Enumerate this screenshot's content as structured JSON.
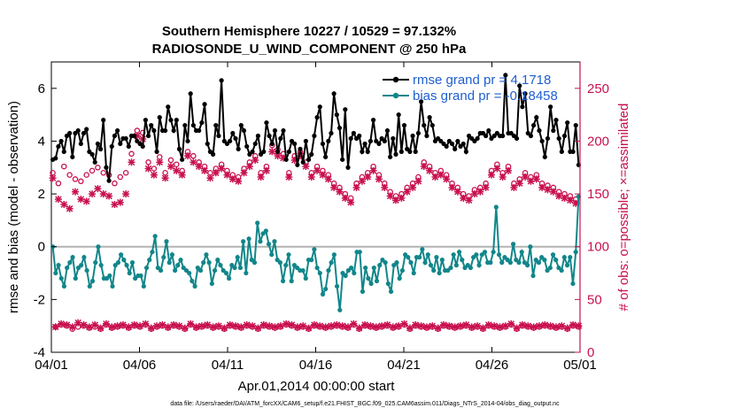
{
  "chart_data": {
    "type": "line",
    "title": "Southern Hemisphere 10227 / 10529 = 97.132%",
    "subtitle": "RADIOSONDE_U_WIND_COMPONENT @ 250 hPa",
    "xlabel": "Apr.01,2014 00:00:00 start",
    "ylabel": "rmse and bias (model - observation)",
    "ylabel_right": "# of obs: o=possible; ×=assimilated",
    "footnote": "data file: /Users/raeder/DAI/ATM_forcXX/CAM6_setup/f.e21.FHIST_BGC.f09_025.CAM6assim.011/Diags_NTrS_2014-04/obs_diag_output.nc",
    "xlim": [
      0,
      30
    ],
    "ylim": [
      -4,
      7
    ],
    "ylim_right": [
      0,
      275
    ],
    "x_ticks": [
      0,
      5,
      10,
      15,
      20,
      25,
      30
    ],
    "x_tick_labels": [
      "04/01",
      "04/06",
      "04/11",
      "04/16",
      "04/21",
      "04/26",
      "05/01"
    ],
    "y_ticks": [
      -4,
      -2,
      0,
      2,
      4,
      6
    ],
    "y_tick_labels": [
      "-4",
      "-2",
      "0",
      "2",
      "4",
      "6"
    ],
    "y_right_ticks": [
      0,
      50,
      100,
      150,
      200,
      250
    ],
    "y_right_tick_labels": [
      "0",
      "50",
      "100",
      "150",
      "200",
      "250"
    ],
    "grid": false,
    "legend_position": "top-right",
    "series": [
      {
        "name": "rmse grand pr = 4.1718",
        "color": "#000000",
        "marker": "circle",
        "axis": "left",
        "values": [
          3.3,
          3.35,
          3.8,
          4.0,
          3.6,
          4.2,
          4.3,
          3.4,
          4.3,
          4.4,
          3.9,
          4.3,
          4.45,
          3.6,
          3.5,
          3.2,
          3.9,
          3.7,
          4.8,
          3.0,
          2.5,
          3.8,
          4.2,
          4.4,
          3.9,
          4.1,
          4.1,
          3.8,
          4.2,
          4.2,
          4.0,
          3.9,
          3.8,
          4.8,
          4.2,
          4.6,
          4.4,
          3.6,
          4.9,
          4.4,
          4.4,
          5.3,
          4.8,
          4.4,
          4.8,
          3.7,
          3.3,
          4.6,
          4.0,
          5.8,
          4.6,
          4.4,
          4.4,
          4.7,
          5.4,
          3.9,
          3.6,
          3.5,
          4.6,
          4.2,
          6.3,
          4.0,
          3.9,
          4.0,
          4.3,
          4.1,
          3.7,
          4.6,
          4.4,
          3.8,
          3.5,
          3.6,
          3.9,
          4.2,
          3.5,
          3.6,
          4.7,
          4.2,
          3.9,
          4.4,
          3.6,
          4.1,
          4.4,
          3.3,
          3.6,
          4.0,
          3.9,
          3.1,
          3.7,
          3.2,
          4.0,
          3.3,
          3.5,
          4.2,
          4.9,
          5.3,
          3.9,
          3.4,
          4.0,
          4.3,
          5.8,
          5.0,
          4.5,
          3.3,
          5.2,
          3.0,
          4.1,
          4.3,
          4.1,
          4.2,
          3.6,
          3.9,
          3.6,
          4.0,
          4.8,
          4.0,
          3.9,
          4.1,
          4.0,
          4.4,
          3.4,
          4.1,
          3.5,
          5.0,
          3.6,
          4.6,
          3.7,
          3.6,
          4.2,
          3.6,
          4.3,
          5.5,
          4.6,
          4.2,
          4.9,
          4.6,
          4.0,
          4.1,
          4.0,
          3.9,
          3.8,
          4.0,
          3.9,
          3.7,
          4.0,
          3.8,
          3.9,
          3.6,
          4.2,
          4.1,
          4.0,
          4.1,
          4.3,
          4.3,
          4.2,
          4.4,
          4.1,
          4.2,
          4.3,
          4.2,
          4.2,
          6.5,
          4.3,
          4.3,
          4.2,
          4.1,
          6.1,
          5.3,
          5.8,
          4.3,
          4.2,
          4.6,
          4.9,
          4.4,
          4.0,
          3.4,
          4.1,
          5.3,
          4.4,
          4.8,
          4.1,
          3.6,
          4.2,
          4.7,
          3.6,
          3.6,
          4.6,
          3.1
        ]
      },
      {
        "name": "bias grand pr = -0.18458",
        "color": "#11868a",
        "marker": "circle",
        "axis": "left",
        "values": [
          0.0,
          -1.0,
          -0.7,
          -1.2,
          -1.5,
          -0.8,
          -0.6,
          -0.4,
          -1.2,
          -0.8,
          -0.7,
          -0.4,
          -0.9,
          -1.5,
          -1.3,
          -0.6,
          0.0,
          -0.7,
          -1.2,
          -1.2,
          -1.1,
          -1.5,
          -0.7,
          -0.6,
          -0.3,
          -0.5,
          -0.7,
          -1.0,
          -0.6,
          -1.2,
          -1.1,
          -1.1,
          -1.5,
          -0.8,
          -0.5,
          -0.2,
          0.4,
          -0.8,
          -0.9,
          -0.4,
          0.2,
          -0.6,
          -0.3,
          -0.9,
          -0.7,
          -0.5,
          -0.8,
          -0.9,
          -1.0,
          -1.3,
          -1.5,
          -0.8,
          -0.9,
          -0.6,
          -0.3,
          -0.6,
          -1.4,
          -0.9,
          -0.5,
          -0.7,
          -0.9,
          -1.0,
          -1.2,
          -0.7,
          -0.8,
          -0.4,
          -0.8,
          0.2,
          -1.0,
          0.3,
          -0.5,
          -0.6,
          0.9,
          0.2,
          0.5,
          0.6,
          0.1,
          -0.3,
          0.2,
          -0.5,
          -0.6,
          -1.3,
          -0.7,
          -0.3,
          -1.3,
          -0.7,
          -0.8,
          -0.9,
          -0.9,
          -1.2,
          -0.5,
          -0.5,
          -0.1,
          -0.8,
          -1.0,
          -1.8,
          -1.6,
          -0.9,
          -0.6,
          -0.3,
          -1.5,
          -2.4,
          -1.0,
          -1.1,
          -0.9,
          -0.8,
          -1.0,
          -0.2,
          -0.2,
          -1.7,
          -0.8,
          -1.2,
          -1.4,
          -0.8,
          -1.3,
          -0.7,
          -0.5,
          -0.6,
          -1.4,
          -1.7,
          -0.7,
          -0.6,
          -1.2,
          -0.9,
          -0.3,
          -0.4,
          -0.6,
          -1.0,
          -0.4,
          -0.4,
          -0.1,
          -0.6,
          -0.3,
          -0.7,
          -0.9,
          -0.4,
          -1.0,
          -0.5,
          -0.9,
          -0.9,
          -0.8,
          -0.3,
          -0.7,
          -0.2,
          -0.5,
          -0.8,
          -0.7,
          -0.8,
          -0.4,
          -0.3,
          -0.7,
          -0.3,
          -0.2,
          -0.6,
          -0.6,
          -0.2,
          1.5,
          -0.3,
          -0.6,
          -0.4,
          -0.5,
          -0.6,
          0.1,
          -0.5,
          -0.6,
          -0.2,
          -0.6,
          -0.7,
          0.0,
          -1.1,
          -0.5,
          -0.6,
          -0.4,
          -0.5,
          -0.9,
          -0.8,
          -0.3,
          -0.5,
          -0.8,
          -0.9,
          -0.4,
          -0.7,
          -0.4,
          -1.4,
          -0.2,
          1.9
        ]
      },
      {
        "name": "possible obs",
        "color": "#c8104f",
        "marker": "o",
        "axis": "right",
        "values": [
          170,
          24,
          160,
          26,
          176,
          25,
          168,
          22,
          164,
          24,
          162,
          25,
          168,
          23,
          172,
          24,
          175,
          22,
          170,
          26,
          168,
          23,
          160,
          24,
          166,
          25,
          170,
          23,
          188,
          25,
          210,
          24,
          208,
          26,
          180,
          22,
          174,
          24,
          185,
          25,
          170,
          23,
          182,
          25,
          178,
          24,
          172,
          22,
          190,
          26,
          186,
          23,
          180,
          24,
          176,
          25,
          170,
          23,
          174,
          24,
          178,
          22,
          172,
          25,
          168,
          24,
          166,
          23,
          174,
          25,
          180,
          24,
          186,
          22,
          170,
          25,
          176,
          24,
          196,
          23,
          192,
          24,
          188,
          26,
          170,
          25,
          186,
          23,
          190,
          24,
          180,
          22,
          170,
          25,
          176,
          24,
          172,
          23,
          168,
          24,
          160,
          25,
          156,
          24,
          150,
          23,
          146,
          26,
          160,
          22,
          166,
          25,
          170,
          24,
          176,
          23,
          168,
          24,
          160,
          25,
          152,
          23,
          148,
          24,
          150,
          26,
          156,
          22,
          160,
          25,
          166,
          24,
          180,
          23,
          176,
          24,
          170,
          22,
          172,
          25,
          168,
          24,
          160,
          23,
          156,
          24,
          150,
          25,
          148,
          23,
          154,
          24,
          156,
          22,
          160,
          25,
          172,
          24,
          178,
          23,
          170,
          24,
          176,
          26,
          160,
          22,
          164,
          25,
          170,
          24,
          166,
          23,
          168,
          24,
          160,
          25,
          158,
          24,
          156,
          23,
          152,
          24,
          150,
          22,
          148,
          25,
          145,
          24
        ]
      },
      {
        "name": "assimilated obs",
        "color": "#c8104f",
        "marker": "x",
        "axis": "right",
        "values": [
          165,
          24,
          145,
          27,
          140,
          26,
          136,
          24,
          152,
          28,
          145,
          26,
          143,
          24,
          150,
          26,
          155,
          23,
          150,
          27,
          148,
          24,
          140,
          25,
          142,
          26,
          150,
          24,
          180,
          26,
          205,
          25,
          202,
          27,
          174,
          23,
          168,
          25,
          180,
          26,
          165,
          24,
          176,
          26,
          172,
          25,
          168,
          23,
          186,
          27,
          180,
          24,
          176,
          25,
          172,
          26,
          165,
          24,
          170,
          25,
          174,
          23,
          168,
          26,
          164,
          25,
          162,
          24,
          170,
          26,
          176,
          25,
          182,
          23,
          166,
          26,
          172,
          25,
          190,
          24,
          186,
          25,
          184,
          27,
          166,
          26,
          182,
          24,
          186,
          25,
          176,
          23,
          166,
          26,
          172,
          25,
          168,
          24,
          164,
          25,
          156,
          26,
          152,
          25,
          146,
          24,
          142,
          27,
          156,
          23,
          162,
          26,
          166,
          25,
          172,
          24,
          164,
          25,
          156,
          26,
          148,
          24,
          144,
          25,
          146,
          27,
          152,
          23,
          156,
          26,
          162,
          25,
          176,
          24,
          172,
          25,
          166,
          23,
          168,
          26,
          164,
          25,
          156,
          24,
          152,
          25,
          146,
          26,
          144,
          24,
          150,
          25,
          152,
          23,
          156,
          26,
          168,
          25,
          174,
          24,
          166,
          25,
          172,
          27,
          156,
          23,
          160,
          26,
          166,
          25,
          162,
          24,
          164,
          25,
          156,
          26,
          154,
          25,
          152,
          24,
          148,
          25,
          146,
          23,
          144,
          26,
          141,
          25
        ]
      }
    ]
  }
}
